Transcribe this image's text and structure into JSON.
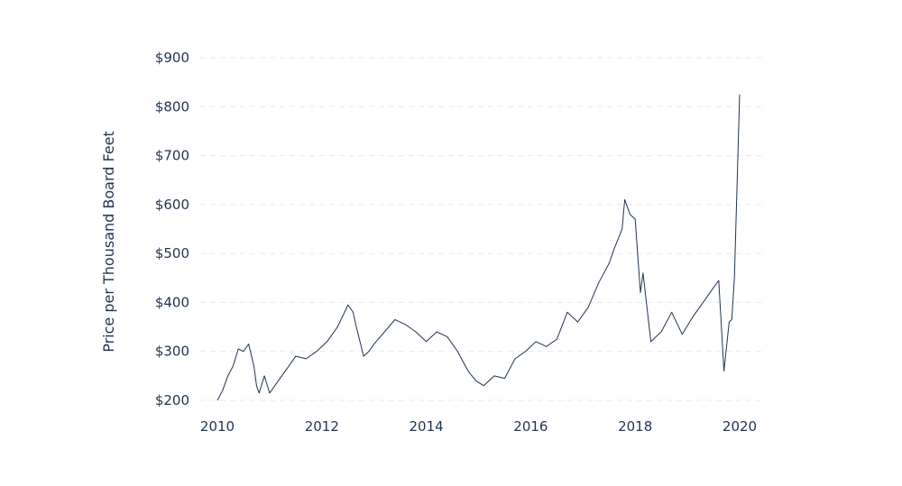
{
  "chart_data": {
    "type": "line",
    "title": "",
    "xlabel": "",
    "ylabel": "Price per Thousand Board Feet",
    "xlim": [
      2010,
      2020
    ],
    "ylim": [
      200,
      900
    ],
    "x_ticks": [
      2010,
      2012,
      2014,
      2016,
      2018,
      2020
    ],
    "x_tick_labels": [
      "2010",
      "2012",
      "2014",
      "2016",
      "2018",
      "2020"
    ],
    "y_ticks": [
      200,
      300,
      400,
      500,
      600,
      700,
      800,
      900
    ],
    "y_tick_labels": [
      "$200",
      "$300",
      "$400",
      "$500",
      "$600",
      "$700",
      "$800",
      "$900"
    ],
    "grid": true,
    "legend": false,
    "colors": {
      "line": "#1f3352",
      "text": "#1f3352",
      "grid": "#e6e9ee"
    },
    "series": [
      {
        "x": [
          2010.0,
          2010.1,
          2010.2,
          2010.3,
          2010.4,
          2010.5,
          2010.6,
          2010.7,
          2010.75,
          2010.8,
          2010.9,
          2011.0,
          2011.1,
          2011.2,
          2011.3,
          2011.4,
          2011.5,
          2011.7,
          2011.9,
          2012.1,
          2012.3,
          2012.5,
          2012.6,
          2012.65,
          2012.8,
          2012.9,
          2013.0,
          2013.2,
          2013.4,
          2013.6,
          2013.8,
          2014.0,
          2014.2,
          2014.4,
          2014.6,
          2014.8,
          2014.95,
          2015.1,
          2015.3,
          2015.5,
          2015.7,
          2015.9,
          2016.1,
          2016.3,
          2016.5,
          2016.7,
          2016.9,
          2017.1,
          2017.3,
          2017.5,
          2017.6,
          2017.75,
          2017.8,
          2017.9,
          2018.0,
          2018.1,
          2018.15,
          2018.3,
          2018.5,
          2018.7,
          2018.9,
          2019.1,
          2019.3,
          2019.5,
          2019.6,
          2019.7,
          2019.8,
          2019.85,
          2019.9,
          2020.0
        ],
        "values": [
          200,
          220,
          250,
          270,
          305,
          300,
          315,
          270,
          230,
          215,
          250,
          215,
          230,
          245,
          260,
          275,
          290,
          285,
          300,
          320,
          350,
          395,
          380,
          355,
          290,
          300,
          315,
          340,
          365,
          355,
          340,
          320,
          340,
          330,
          300,
          260,
          240,
          230,
          250,
          245,
          285,
          300,
          320,
          310,
          325,
          380,
          360,
          390,
          440,
          480,
          510,
          550,
          610,
          580,
          570,
          420,
          460,
          320,
          340,
          380,
          335,
          370,
          400,
          430,
          445,
          260,
          360,
          365,
          450,
          825
        ]
      }
    ]
  }
}
